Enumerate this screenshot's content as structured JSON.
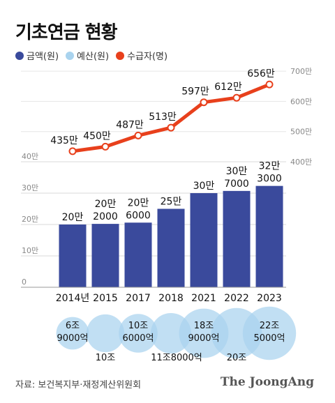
{
  "chart_data": {
    "type": "bar+line",
    "title": "기초연금 현황",
    "categories": [
      "2014년",
      "2015",
      "2017",
      "2018",
      "2021",
      "2022",
      "2023"
    ],
    "series": [
      {
        "name": "금액(원)",
        "kind": "bar",
        "color": "#3a4a9c",
        "axis": "left",
        "values": [
          200000,
          202000,
          206000,
          250000,
          300000,
          307000,
          323000
        ],
        "labels": [
          [
            "20만"
          ],
          [
            "20만",
            "2000"
          ],
          [
            "20만",
            "6000"
          ],
          [
            "25만"
          ],
          [
            "30만"
          ],
          [
            "30만",
            "7000"
          ],
          [
            "32만",
            "3000"
          ]
        ]
      },
      {
        "name": "수급자(명)",
        "kind": "line",
        "color": "#e8401c",
        "axis": "right",
        "values": [
          435,
          450,
          487,
          513,
          597,
          612,
          656
        ],
        "labels": [
          "435만",
          "450만",
          "487만",
          "513만",
          "597만",
          "612만",
          "656만"
        ]
      },
      {
        "name": "예산(원)",
        "kind": "bubble",
        "color": "#a9d3ee",
        "values": [
          6.9,
          10,
          10.6,
          11.8,
          18.9,
          20,
          22.5
        ],
        "labels": [
          [
            "6조",
            "9000억"
          ],
          [
            "10조"
          ],
          [
            "10조",
            "6000억"
          ],
          [
            "11조8000억"
          ],
          [
            "18조",
            "9000억"
          ],
          [
            "20조"
          ],
          [
            "22조",
            "5000억"
          ]
        ]
      }
    ],
    "left_axis": {
      "ticks": [
        "0",
        "10만",
        "20만",
        "30만",
        "40만"
      ],
      "ylim": [
        0,
        400000
      ]
    },
    "right_axis": {
      "ticks": [
        "400만",
        "500만",
        "600만",
        "700만"
      ],
      "ylim": [
        400,
        700
      ]
    }
  },
  "legend": [
    {
      "label": "금액(원)",
      "color": "#3a4a9c"
    },
    {
      "label": "예산(원)",
      "color": "#a9d3ee"
    },
    {
      "label": "수급자(명)",
      "color": "#e8401c"
    }
  ],
  "source": "자료: 보건복지부·재정계산위원회",
  "brand": "The JoongAng"
}
